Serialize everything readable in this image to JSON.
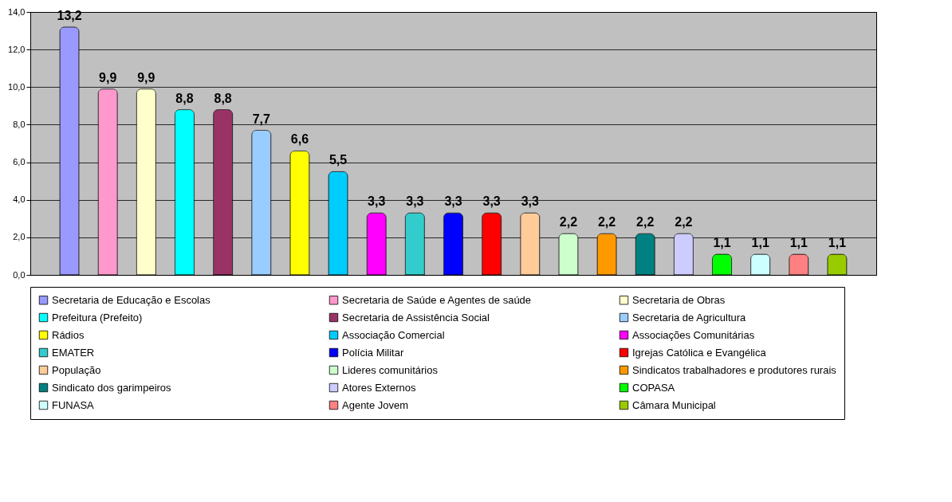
{
  "chart_data": {
    "type": "bar",
    "categories": [
      null
    ],
    "series": [
      {
        "name": "Secretaria de Educação e Escolas",
        "color": "#9999ff",
        "values": [
          13.2
        ],
        "value_labels": [
          "13,2"
        ]
      },
      {
        "name": "Secretaria de Saúde e Agentes de saúde",
        "color": "#ff99cc",
        "values": [
          9.9
        ],
        "value_labels": [
          "9,9"
        ]
      },
      {
        "name": "Secretaria de Obras",
        "color": "#ffffcc",
        "values": [
          9.9
        ],
        "value_labels": [
          "9,9"
        ]
      },
      {
        "name": "Prefeitura (Prefeito)",
        "color": "#00ffff",
        "values": [
          8.8
        ],
        "value_labels": [
          "8,8"
        ]
      },
      {
        "name": "Secretaria de Assistência Social",
        "color": "#993366",
        "values": [
          8.8
        ],
        "value_labels": [
          "8,8"
        ]
      },
      {
        "name": "Secretaria de Agricultura",
        "color": "#99ccff",
        "values": [
          7.7
        ],
        "value_labels": [
          "7,7"
        ]
      },
      {
        "name": "Rádios",
        "color": "#ffff00",
        "values": [
          6.6
        ],
        "value_labels": [
          "6,6"
        ]
      },
      {
        "name": "Associação Comercial",
        "color": "#00ccff",
        "values": [
          5.5
        ],
        "value_labels": [
          "5,5"
        ]
      },
      {
        "name": "Associações Comunitárias",
        "color": "#ff00ff",
        "values": [
          3.3
        ],
        "value_labels": [
          "3,3"
        ]
      },
      {
        "name": "EMATER",
        "color": "#33cccc",
        "values": [
          3.3
        ],
        "value_labels": [
          "3,3"
        ]
      },
      {
        "name": "Polícia Militar",
        "color": "#0000ff",
        "values": [
          3.3
        ],
        "value_labels": [
          "3,3"
        ]
      },
      {
        "name": "Igrejas Católica e Evangélica",
        "color": "#ff0000",
        "values": [
          3.3
        ],
        "value_labels": [
          "3,3"
        ]
      },
      {
        "name": "População",
        "color": "#ffcc99",
        "values": [
          3.3
        ],
        "value_labels": [
          "3,3"
        ]
      },
      {
        "name": "Lideres comunitários",
        "color": "#ccffcc",
        "values": [
          2.2
        ],
        "value_labels": [
          "2,2"
        ]
      },
      {
        "name": "Sindicatos trabalhadores e produtores rurais",
        "color": "#ff9900",
        "values": [
          2.2
        ],
        "value_labels": [
          "2,2"
        ]
      },
      {
        "name": "Sindicato dos garimpeiros",
        "color": "#008080",
        "values": [
          2.2
        ],
        "value_labels": [
          "2,2"
        ]
      },
      {
        "name": "Atores Externos",
        "color": "#ccccff",
        "values": [
          2.2
        ],
        "value_labels": [
          "2,2"
        ]
      },
      {
        "name": "COPASA",
        "color": "#00ff00",
        "values": [
          1.1
        ],
        "value_labels": [
          "1,1"
        ]
      },
      {
        "name": "FUNASA",
        "color": "#ccffff",
        "values": [
          1.1
        ],
        "value_labels": [
          "1,1"
        ]
      },
      {
        "name": "Agente Jovem",
        "color": "#ff8080",
        "values": [
          1.1
        ],
        "value_labels": [
          "1,1"
        ]
      },
      {
        "name": "Câmara Municipal",
        "color": "#99cc00",
        "values": [
          1.1
        ],
        "value_labels": [
          "1,1"
        ]
      }
    ],
    "ylim": [
      0,
      14
    ],
    "yticks": [
      {
        "value": 0,
        "label": "0,0"
      },
      {
        "value": 2,
        "label": "2,0"
      },
      {
        "value": 4,
        "label": "4,0"
      },
      {
        "value": 6,
        "label": "6,0"
      },
      {
        "value": 8,
        "label": "8,0"
      },
      {
        "value": 10,
        "label": "10,0"
      },
      {
        "value": 12,
        "label": "12,0"
      },
      {
        "value": 14,
        "label": "14,0"
      }
    ],
    "grid": "y",
    "legend": "bottom",
    "tick_labels": "y"
  }
}
